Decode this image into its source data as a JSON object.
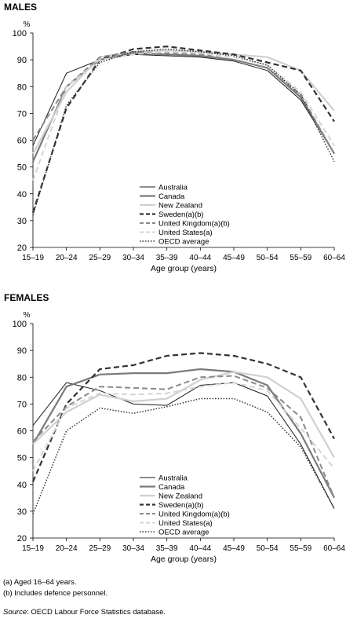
{
  "notes": [
    "(a) Aged 16–64 years.",
    "(b) Includes defence personnel."
  ],
  "source": {
    "label": "Source",
    "text": ": OECD Labour Force Statistics database."
  },
  "chart_data": [
    {
      "type": "line",
      "title": "MALES",
      "ylabel": "%",
      "xlabel": "Age group (years)",
      "ylim": [
        20,
        100
      ],
      "yticks": [
        20,
        30,
        40,
        50,
        60,
        70,
        80,
        90,
        100
      ],
      "legend_position": "bottom-center",
      "categories": [
        "15–19",
        "20–24",
        "25–29",
        "30–34",
        "35–39",
        "40–44",
        "45–49",
        "50–54",
        "55–59",
        "60–64"
      ],
      "series": [
        {
          "name": "Australia",
          "values": [
            58,
            85,
            90,
            92,
            91.5,
            91,
            89.5,
            86,
            75,
            55
          ],
          "color": "#1a1a1a",
          "width": 1,
          "dash": ""
        },
        {
          "name": "Canada",
          "values": [
            52,
            80,
            90,
            92.5,
            92,
            91.5,
            90,
            87,
            76,
            55
          ],
          "color": "#7a7a7a",
          "width": 2.2,
          "dash": ""
        },
        {
          "name": "New Zealand",
          "values": [
            55,
            78,
            91,
            93,
            93.5,
            93,
            92,
            91,
            86,
            71
          ],
          "color": "#d0d0d0",
          "width": 2.2,
          "dash": ""
        },
        {
          "name": "Sweden(a)(b)",
          "values": [
            33,
            72,
            90,
            94,
            95,
            93.5,
            92,
            89,
            86,
            67
          ],
          "color": "#333333",
          "width": 2.2,
          "dash": "7,4"
        },
        {
          "name": "United Kingdom(a)(b)",
          "values": [
            60,
            80,
            91,
            93,
            92.5,
            92,
            90,
            87,
            77,
            55
          ],
          "color": "#8a8a8a",
          "width": 2,
          "dash": "7,4"
        },
        {
          "name": "United States(a)",
          "values": [
            45,
            80,
            90,
            92,
            93,
            92.5,
            91,
            88,
            78,
            58
          ],
          "color": "#d4d4d4",
          "width": 2,
          "dash": "7,4"
        },
        {
          "name": "OECD average",
          "values": [
            32,
            73,
            89,
            93,
            94,
            93,
            91.5,
            88,
            77,
            52
          ],
          "color": "#333333",
          "width": 1.5,
          "dash": "1.5,2"
        }
      ]
    },
    {
      "type": "line",
      "title": "FEMALES",
      "ylabel": "%",
      "xlabel": "Age group (years)",
      "ylim": [
        20,
        100
      ],
      "yticks": [
        20,
        30,
        40,
        50,
        60,
        70,
        80,
        90,
        100
      ],
      "legend_position": "bottom-center",
      "categories": [
        "15–19",
        "20–24",
        "25–29",
        "30–34",
        "35–39",
        "40–44",
        "45–49",
        "50–54",
        "55–59",
        "60–64"
      ],
      "series": [
        {
          "name": "Australia",
          "values": [
            62,
            78,
            75,
            70,
            69.5,
            77,
            78,
            73,
            55,
            31
          ],
          "color": "#1a1a1a",
          "width": 1,
          "dash": ""
        },
        {
          "name": "Canada",
          "values": [
            55,
            76.5,
            81,
            81.5,
            81.5,
            83,
            82,
            77,
            59,
            35
          ],
          "color": "#7a7a7a",
          "width": 2.2,
          "dash": ""
        },
        {
          "name": "New Zealand",
          "values": [
            55,
            67,
            73.5,
            71,
            72,
            79,
            82,
            80,
            72,
            50
          ],
          "color": "#d0d0d0",
          "width": 2.2,
          "dash": ""
        },
        {
          "name": "Sweden(a)(b)",
          "values": [
            41,
            70,
            83,
            84.5,
            88,
            89,
            88,
            85,
            80,
            57
          ],
          "color": "#333333",
          "width": 2.2,
          "dash": "7,4"
        },
        {
          "name": "United Kingdom(a)(b)",
          "values": [
            56,
            69,
            76.5,
            76,
            75.5,
            80,
            80.5,
            76,
            65,
            35
          ],
          "color": "#8a8a8a",
          "width": 2,
          "dash": "7,4"
        },
        {
          "name": "United States(a)",
          "values": [
            45,
            68.5,
            74,
            73.5,
            74,
            76.5,
            78,
            75,
            61,
            46
          ],
          "color": "#d4d4d4",
          "width": 2,
          "dash": "7,4"
        },
        {
          "name": "OECD average",
          "values": [
            29,
            60,
            68.5,
            66.5,
            69,
            72,
            72,
            67,
            54,
            31
          ],
          "color": "#333333",
          "width": 1.5,
          "dash": "1.5,2"
        }
      ]
    }
  ]
}
